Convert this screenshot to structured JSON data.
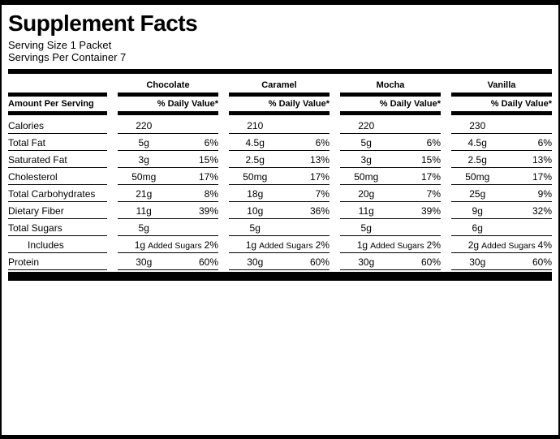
{
  "title": "Supplement Facts",
  "serving_size": "Serving Size 1 Packet",
  "servings_per_container": "Servings Per Container 7",
  "header": {
    "amount_label": "Amount Per Serving",
    "daily_value_label": "% Daily Value*"
  },
  "flavors": [
    "Chocolate",
    "Caramel",
    "Mocha",
    "Vanilla"
  ],
  "rows": [
    {
      "label": "Calories",
      "indent": false,
      "values": [
        {
          "amount": "220"
        },
        {
          "amount": "210"
        },
        {
          "amount": "220"
        },
        {
          "amount": "230"
        }
      ]
    },
    {
      "label": "Total Fat",
      "indent": false,
      "values": [
        {
          "amount": "5g",
          "dv": "6%"
        },
        {
          "amount": "4.5g",
          "dv": "6%"
        },
        {
          "amount": "5g",
          "dv": "6%"
        },
        {
          "amount": "4.5g",
          "dv": "6%"
        }
      ]
    },
    {
      "label": "Saturated Fat",
      "indent": false,
      "values": [
        {
          "amount": "3g",
          "dv": "15%"
        },
        {
          "amount": "2.5g",
          "dv": "13%"
        },
        {
          "amount": "3g",
          "dv": "15%"
        },
        {
          "amount": "2.5g",
          "dv": "13%"
        }
      ]
    },
    {
      "label": "Cholesterol",
      "indent": false,
      "values": [
        {
          "amount": "50mg",
          "dv": "17%"
        },
        {
          "amount": "50mg",
          "dv": "17%"
        },
        {
          "amount": "50mg",
          "dv": "17%"
        },
        {
          "amount": "50mg",
          "dv": "17%"
        }
      ]
    },
    {
      "label": "Total Carbohydrates",
      "indent": false,
      "values": [
        {
          "amount": "21g",
          "dv": "8%"
        },
        {
          "amount": "18g",
          "dv": "7%"
        },
        {
          "amount": "20g",
          "dv": "7%"
        },
        {
          "amount": "25g",
          "dv": "9%"
        }
      ]
    },
    {
      "label": "Dietary Fiber",
      "indent": false,
      "values": [
        {
          "amount": "11g",
          "dv": "39%"
        },
        {
          "amount": "10g",
          "dv": "36%"
        },
        {
          "amount": "11g",
          "dv": "39%"
        },
        {
          "amount": "9g",
          "dv": "32%"
        }
      ]
    },
    {
      "label": "Total Sugars",
      "indent": false,
      "values": [
        {
          "amount": "5g"
        },
        {
          "amount": "5g"
        },
        {
          "amount": "5g"
        },
        {
          "amount": "6g"
        }
      ]
    },
    {
      "label": "Includes",
      "indent": true,
      "values": [
        {
          "amount": "1g",
          "middle": "Added Sugars",
          "dv": "2%"
        },
        {
          "amount": "1g",
          "middle": "Added Sugars",
          "dv": "2%"
        },
        {
          "amount": "1g",
          "middle": "Added Sugars",
          "dv": "2%"
        },
        {
          "amount": "2g",
          "middle": "Added Sugars",
          "dv": "4%"
        }
      ]
    },
    {
      "label": "Protein",
      "indent": false,
      "values": [
        {
          "amount": "30g",
          "dv": "60%"
        },
        {
          "amount": "30g",
          "dv": "60%"
        },
        {
          "amount": "30g",
          "dv": "60%"
        },
        {
          "amount": "30g",
          "dv": "60%"
        }
      ]
    }
  ],
  "colors": {
    "ink": "#000000",
    "paper": "#ffffff"
  }
}
